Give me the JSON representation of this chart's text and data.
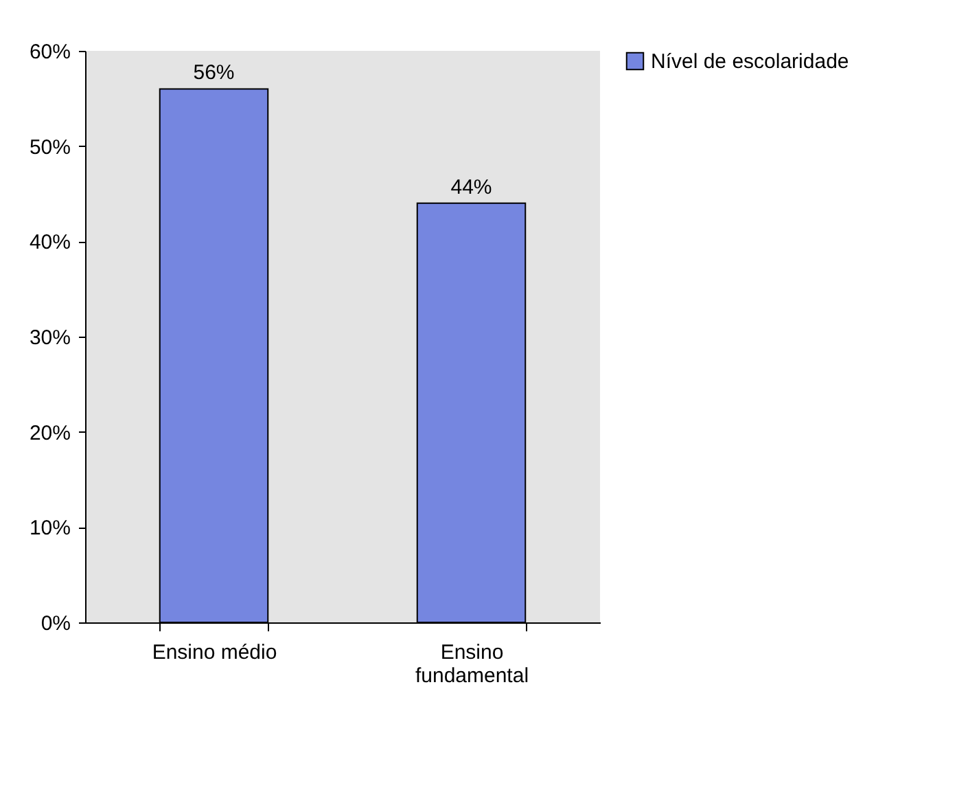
{
  "chart_data": {
    "type": "bar",
    "categories": [
      "Ensino médio",
      "Ensino fundamental"
    ],
    "series": [
      {
        "name": "Nível de escolaridade",
        "color": "#7586e0",
        "values": [
          56,
          44
        ],
        "value_labels": [
          "56%",
          "44%"
        ]
      }
    ],
    "ylim": [
      0,
      60
    ],
    "yticks": [
      {
        "value": 0,
        "label": "0%"
      },
      {
        "value": 10,
        "label": "10%"
      },
      {
        "value": 20,
        "label": "20%"
      },
      {
        "value": 30,
        "label": "30%"
      },
      {
        "value": 40,
        "label": "40%"
      },
      {
        "value": 50,
        "label": "50%"
      },
      {
        "value": 60,
        "label": "60%"
      }
    ],
    "grid": false,
    "legend": "right"
  }
}
